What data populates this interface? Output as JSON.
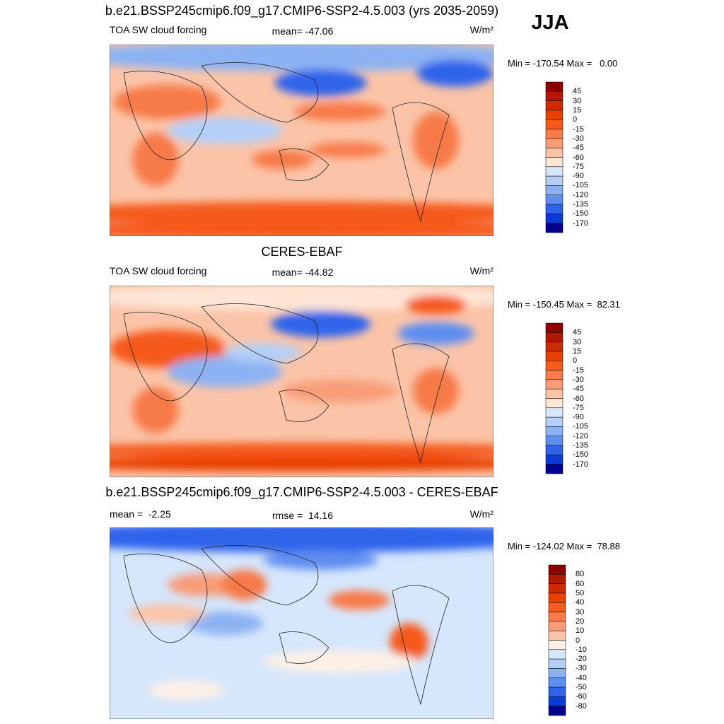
{
  "header": {
    "season": "JJA"
  },
  "panels": [
    {
      "title": "b.e21.BSSP245cmip6.f09_g17.CMIP6-SSP2-4.5.003 (yrs 2035-2059)",
      "left": "TOA SW cloud forcing",
      "center": "mean= -47.06",
      "units": "W/m²",
      "minmax": "Min = -170.54 Max =   0.00",
      "colorbar": {
        "labels": [
          "45",
          "30",
          "15",
          "0",
          "-15",
          "-30",
          "-45",
          "-60",
          "-75",
          "-90",
          "-105",
          "-120",
          "-135",
          "-150",
          "-170"
        ],
        "colors": [
          "#8c0000",
          "#b01800",
          "#cc2a00",
          "#e84000",
          "#f55a1e",
          "#f77a4a",
          "#f89c78",
          "#fbc4a8",
          "#fde6d6",
          "#d6e6fb",
          "#b4cff8",
          "#8cb2f3",
          "#5e8ef0",
          "#2f64ea",
          "#0b3bd6",
          "#00008c"
        ]
      }
    },
    {
      "title": "CERES-EBAF",
      "left": "TOA SW cloud forcing",
      "center": "mean= -44.82",
      "units": "W/m²",
      "minmax": "Min = -150.45 Max =  82.31",
      "colorbar": {
        "labels": [
          "45",
          "30",
          "15",
          "0",
          "-15",
          "-30",
          "-45",
          "-60",
          "-75",
          "-90",
          "-105",
          "-120",
          "-135",
          "-150",
          "-170"
        ],
        "colors": [
          "#8c0000",
          "#b01800",
          "#cc2a00",
          "#e84000",
          "#f55a1e",
          "#f77a4a",
          "#f89c78",
          "#fbc4a8",
          "#fde6d6",
          "#d6e6fb",
          "#b4cff8",
          "#8cb2f3",
          "#5e8ef0",
          "#2f64ea",
          "#0b3bd6",
          "#00008c"
        ]
      }
    },
    {
      "title": "b.e21.BSSP245cmip6.f09_g17.CMIP6-SSP2-4.5.003 - CERES-EBAF",
      "left": "mean =  -2.25",
      "center": "rmse =  14.16",
      "units": "W/m²",
      "minmax": "Min = -124.02 Max =  78.88",
      "colorbar": {
        "labels": [
          "80",
          "60",
          "50",
          "40",
          "30",
          "20",
          "10",
          "0",
          "-10",
          "-20",
          "-30",
          "-40",
          "-50",
          "-60",
          "-80"
        ],
        "colors": [
          "#8c0000",
          "#b01800",
          "#cc2a00",
          "#e84000",
          "#f55a1e",
          "#f77a4a",
          "#f89c78",
          "#fbc4a8",
          "#fdf0e6",
          "#d6e6fb",
          "#b4cff8",
          "#8cb2f3",
          "#5e8ef0",
          "#2f64ea",
          "#0b3bd6",
          "#00008c"
        ]
      }
    }
  ]
}
